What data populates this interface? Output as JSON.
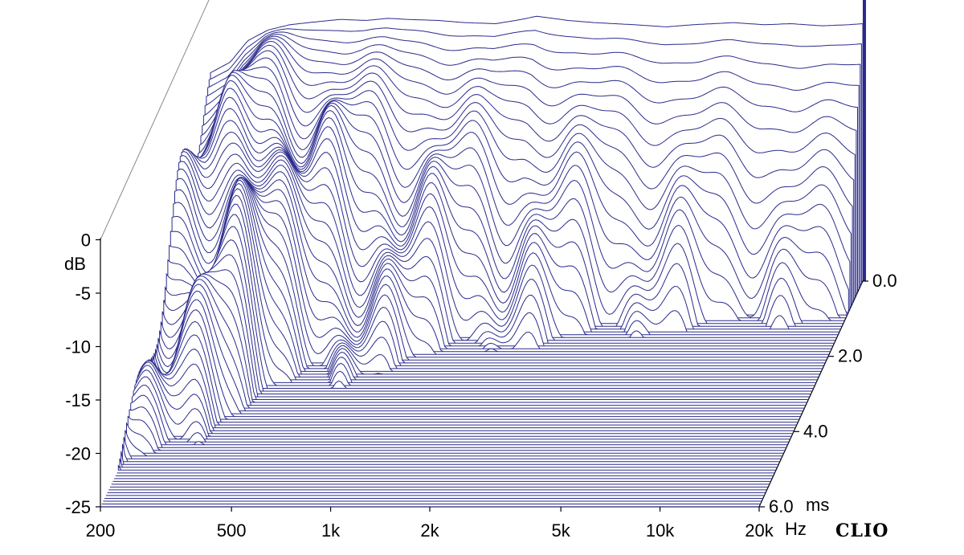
{
  "chart_data": {
    "type": "waterfall-3d",
    "brand": "CLIO",
    "x_axis": {
      "scale": "log",
      "range": [
        200,
        20000
      ],
      "ticks": [
        {
          "value": 200,
          "label": "200"
        },
        {
          "value": 500,
          "label": "500"
        },
        {
          "value": 1000,
          "label": "1k"
        },
        {
          "value": 2000,
          "label": "2k"
        },
        {
          "value": 5000,
          "label": "5k"
        },
        {
          "value": 10000,
          "label": "10k"
        },
        {
          "value": 20000,
          "label": "20k"
        }
      ],
      "unit": "Hz"
    },
    "y_axis": {
      "unit": "dB",
      "range": [
        -25,
        0
      ],
      "ticks": [
        {
          "value": 0,
          "label": "0"
        },
        {
          "value": -5,
          "label": "-5"
        },
        {
          "value": -10,
          "label": "-10"
        },
        {
          "value": -15,
          "label": "-15"
        },
        {
          "value": -20,
          "label": "-20"
        },
        {
          "value": -25,
          "label": "-25"
        }
      ]
    },
    "z_axis": {
      "unit": "ms",
      "range": [
        0,
        6
      ],
      "ticks": [
        {
          "value": 0,
          "label": "0.0"
        },
        {
          "value": 2,
          "label": "2.0"
        },
        {
          "value": 4,
          "label": "4.0"
        },
        {
          "value": 6,
          "label": "6.0"
        }
      ]
    },
    "slices": 80,
    "color": "#2a2a8c",
    "front_response_db": [
      [
        200,
        -5.5
      ],
      [
        230,
        -4.5
      ],
      [
        260,
        -2.5
      ],
      [
        300,
        -1.5
      ],
      [
        350,
        -1.0
      ],
      [
        400,
        -0.8
      ],
      [
        500,
        -0.5
      ],
      [
        600,
        -0.6
      ],
      [
        700,
        -0.4
      ],
      [
        800,
        -0.5
      ],
      [
        1000,
        -0.6
      ],
      [
        1200,
        -0.8
      ],
      [
        1500,
        -0.9
      ],
      [
        1800,
        -0.5
      ],
      [
        2000,
        -0.2
      ],
      [
        2500,
        -0.6
      ],
      [
        3000,
        -0.8
      ],
      [
        4000,
        -1.0
      ],
      [
        5000,
        -1.2
      ],
      [
        6000,
        -1.0
      ],
      [
        7000,
        -0.9
      ],
      [
        8000,
        -0.8
      ],
      [
        10000,
        -1.0
      ],
      [
        12000,
        -0.9
      ],
      [
        15000,
        -1.1
      ],
      [
        18000,
        -1.0
      ],
      [
        20000,
        -0.9
      ]
    ]
  }
}
